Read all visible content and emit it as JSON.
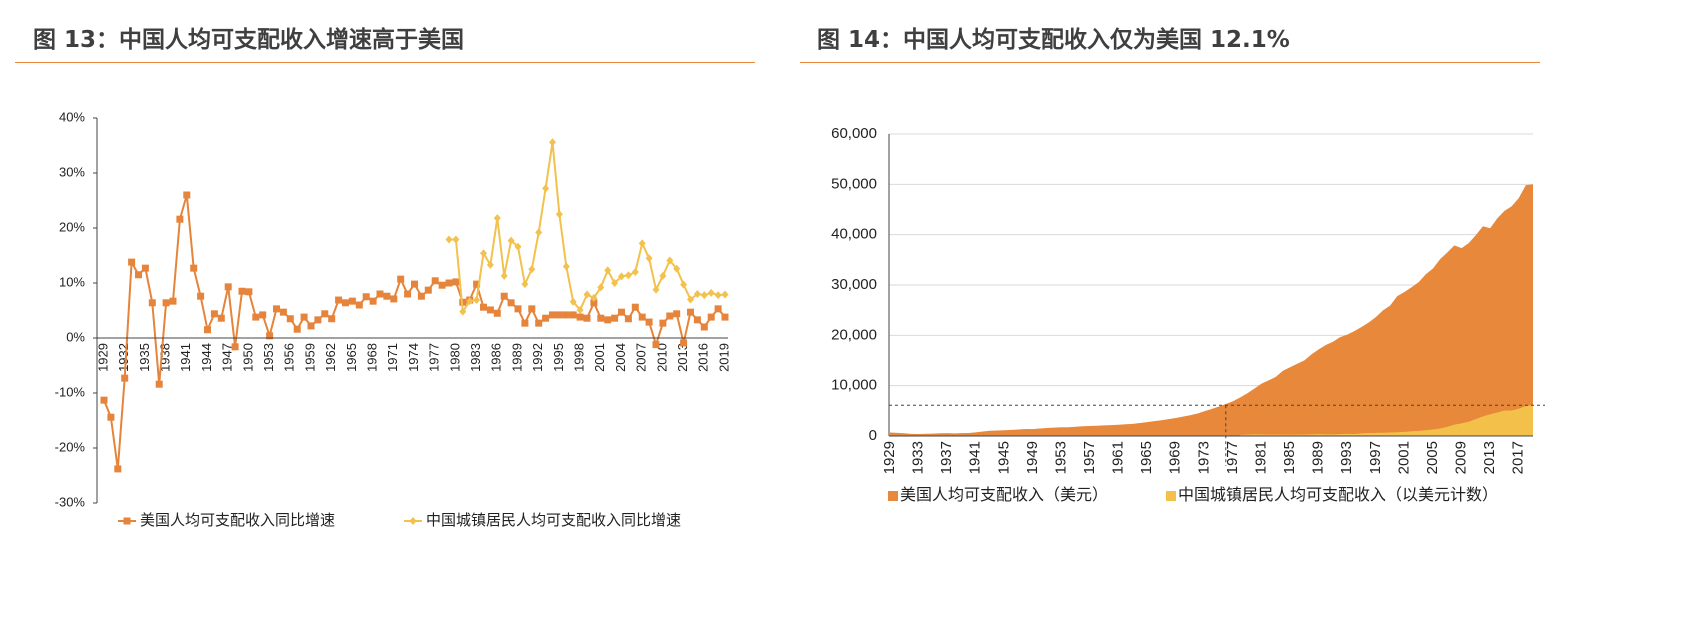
{
  "chart_data": [
    {
      "type": "line",
      "title": "图 13：中国人均可支配收入增速高于美国",
      "categories": [
        1929,
        null,
        null,
        1932,
        null,
        null,
        1935,
        null,
        null,
        1938,
        null,
        null,
        1941,
        null,
        null,
        1944,
        null,
        null,
        1947,
        null,
        null,
        1950,
        null,
        null,
        1953,
        null,
        null,
        1956,
        null,
        null,
        1959,
        null,
        null,
        1962,
        null,
        null,
        1965,
        null,
        null,
        1968,
        null,
        null,
        1971,
        null,
        null,
        1974,
        null,
        null,
        1977,
        null,
        null,
        1980,
        null,
        null,
        1983,
        null,
        null,
        1986,
        null,
        null,
        1989,
        null,
        null,
        1992,
        null,
        null,
        1995,
        null,
        null,
        1998,
        null,
        null,
        2001,
        null,
        null,
        2004,
        null,
        null,
        2007,
        null,
        null,
        2010,
        null,
        null,
        2013,
        null,
        null,
        2016,
        null,
        null,
        2019
      ],
      "ylim": [
        -30,
        40
      ],
      "yticks": [
        {
          "value": -30,
          "label": "-30%"
        },
        {
          "value": -20,
          "label": "-20%"
        },
        {
          "value": -10,
          "label": "-10%"
        },
        {
          "value": 0,
          "label": "0%"
        },
        {
          "value": 10,
          "label": "10%"
        },
        {
          "value": 20,
          "label": "20%"
        },
        {
          "value": 30,
          "label": "30%"
        },
        {
          "value": 40,
          "label": "40%"
        }
      ],
      "grid": false,
      "series": [
        {
          "name": "美国人均可支配收入同比增速",
          "color": "#e5843a",
          "marker": "square",
          "values": [
            -11.3,
            -14.4,
            -23.8,
            -7.3,
            13.8,
            11.5,
            12.7,
            6.4,
            -8.4,
            6.4,
            6.7,
            21.6,
            26.0,
            12.7,
            7.6,
            1.5,
            4.4,
            3.6,
            9.3,
            -1.6,
            8.5,
            8.4,
            3.8,
            4.2,
            0.4,
            5.3,
            4.7,
            3.5,
            1.6,
            3.8,
            2.2,
            3.3,
            4.4,
            3.5,
            6.9,
            6.4,
            6.7,
            6.0,
            7.5,
            6.7,
            8.0,
            7.6,
            7.1,
            10.7,
            8.0,
            9.8,
            7.6,
            8.7,
            10.4,
            9.6,
            10.0,
            10.2,
            6.5,
            6.9,
            9.8,
            5.6,
            5.1,
            4.5,
            7.6,
            6.4,
            5.3,
            2.7,
            5.3,
            2.7,
            3.6,
            4.2,
            4.2,
            4.2,
            4.2,
            3.8,
            3.6,
            6.4,
            3.6,
            3.3,
            3.6,
            4.7,
            3.5,
            5.6,
            3.8,
            2.9,
            -1.2,
            2.7,
            4.0,
            4.4,
            -0.9,
            4.7,
            3.3,
            2.0,
            3.8,
            5.3,
            3.8
          ]
        },
        {
          "name": "中国城镇居民人均可支配收入同比增速",
          "color": "#f2c14e",
          "marker": "diamond",
          "values": [
            null,
            null,
            null,
            null,
            null,
            null,
            null,
            null,
            null,
            null,
            null,
            null,
            null,
            null,
            null,
            null,
            null,
            null,
            null,
            null,
            null,
            null,
            null,
            null,
            null,
            null,
            null,
            null,
            null,
            null,
            null,
            null,
            null,
            null,
            null,
            null,
            null,
            null,
            null,
            null,
            null,
            null,
            null,
            null,
            null,
            null,
            null,
            null,
            null,
            null,
            17.9,
            17.9,
            4.8,
            6.7,
            6.9,
            15.4,
            13.3,
            21.8,
            11.3,
            17.7,
            16.6,
            9.8,
            12.5,
            19.2,
            27.2,
            35.6,
            22.5,
            13.0,
            6.6,
            5.1,
            7.9,
            7.3,
            9.2,
            12.3,
            10.0,
            11.2,
            11.4,
            12.0,
            17.2,
            14.5,
            8.8,
            11.3,
            14.1,
            12.6,
            9.7,
            7.0,
            8.0,
            7.8,
            8.2,
            7.8,
            7.9
          ]
        }
      ]
    },
    {
      "type": "area",
      "title": "图 14：中国人均可支配收入仅为美国 12.1%",
      "categories": [
        1929,
        null,
        null,
        null,
        1933,
        null,
        null,
        null,
        1937,
        null,
        null,
        null,
        1941,
        null,
        null,
        null,
        1945,
        null,
        null,
        null,
        1949,
        null,
        null,
        null,
        1953,
        null,
        null,
        null,
        1957,
        null,
        null,
        null,
        1961,
        null,
        null,
        null,
        1965,
        null,
        null,
        null,
        1969,
        null,
        null,
        null,
        1973,
        null,
        null,
        null,
        1977,
        null,
        null,
        null,
        1981,
        null,
        null,
        null,
        1985,
        null,
        null,
        null,
        1989,
        null,
        null,
        null,
        1993,
        null,
        null,
        null,
        1997,
        null,
        null,
        null,
        2001,
        null,
        null,
        null,
        2005,
        null,
        null,
        null,
        2009,
        null,
        null,
        null,
        2013,
        null,
        null,
        null,
        2017,
        null,
        null
      ],
      "ylim": [
        0,
        60000
      ],
      "yticks": [
        0,
        {
          "value": 10000,
          "label": "10,000"
        },
        {
          "value": 20000,
          "label": "20,000"
        },
        {
          "value": 30000,
          "label": "30,000"
        },
        {
          "value": 40000,
          "label": "40,000"
        },
        {
          "value": 50000,
          "label": "50,000"
        },
        {
          "value": 60000,
          "label": "60,000"
        }
      ],
      "grid": true,
      "hline": 6100,
      "vline": 1976,
      "series": [
        {
          "name": "美国人均可支配收入（美元）",
          "color": "#e8883a",
          "values": [
            683,
            617,
            537,
            415,
            388,
            436,
            483,
            543,
            578,
            531,
            563,
            601,
            722,
            905,
            1032,
            1105,
            1144,
            1218,
            1283,
            1390,
            1370,
            1488,
            1599,
            1664,
            1735,
            1747,
            1840,
            1932,
            1999,
            2032,
            2119,
            2168,
            2224,
            2324,
            2406,
            2593,
            2763,
            2954,
            3120,
            3352,
            3575,
            3859,
            4128,
            4441,
            4921,
            5353,
            5847,
            6358,
            6912,
            7658,
            8475,
            9424,
            10412,
            11042,
            11738,
            12952,
            13663,
            14362,
            15030,
            16216,
            17220,
            18089,
            18722,
            19639,
            20150,
            20832,
            21661,
            22556,
            23608,
            24949,
            25894,
            27799,
            28598,
            29545,
            30571,
            32136,
            33276,
            35151,
            36448,
            37872,
            37320,
            38316,
            39897,
            41660,
            41282,
            43241,
            44726,
            45616,
            47261,
            49839,
            50000
          ]
        },
        {
          "name": "中国城镇居民人均可支配收入（以美元计数）",
          "color": "#f3c14a",
          "values": [
            null,
            null,
            null,
            null,
            null,
            null,
            null,
            null,
            null,
            null,
            null,
            null,
            null,
            null,
            null,
            null,
            null,
            null,
            null,
            null,
            null,
            null,
            null,
            null,
            null,
            null,
            null,
            null,
            null,
            null,
            null,
            null,
            null,
            null,
            null,
            null,
            null,
            null,
            null,
            null,
            null,
            null,
            null,
            null,
            null,
            null,
            null,
            null,
            null,
            229,
            269,
            320,
            296,
            283,
            285,
            283,
            250,
            262,
            269,
            318,
            368,
            316,
            319,
            369,
            438,
            405,
            513,
            585,
            626,
            653,
            705,
            757,
            828,
            934,
            1022,
            1136,
            1282,
            1479,
            1808,
            2270,
            2517,
            2826,
            3374,
            3893,
            4322,
            4670,
            5050,
            5060,
            5410,
            5955,
            6130
          ]
        }
      ]
    }
  ]
}
